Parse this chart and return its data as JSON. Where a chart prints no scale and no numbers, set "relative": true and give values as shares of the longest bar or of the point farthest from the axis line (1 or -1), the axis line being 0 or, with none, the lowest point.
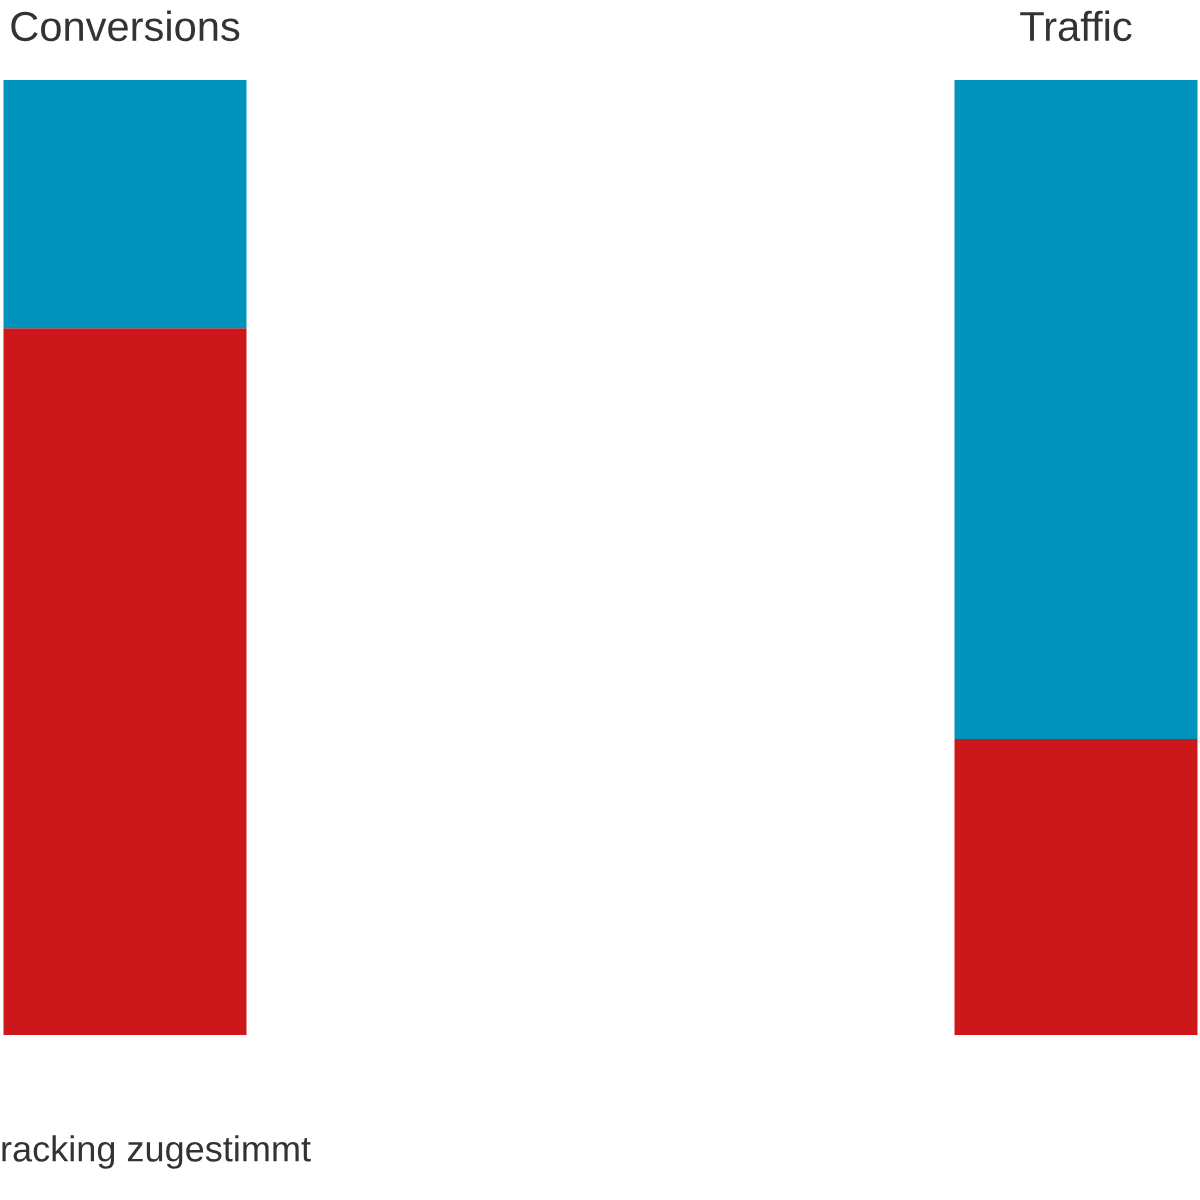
{
  "chart_data": {
    "type": "bar",
    "stacked": true,
    "relative": true,
    "categories": [
      "Conversions",
      "Traffic"
    ],
    "series": [
      {
        "color": "#cc181b",
        "values": [
          0.74,
          0.31
        ]
      },
      {
        "color": "#0093bb",
        "values": [
          0.26,
          0.69
        ]
      }
    ],
    "annotations": [
      "racking zugestimmt"
    ],
    "grid": false,
    "legend": false
  }
}
